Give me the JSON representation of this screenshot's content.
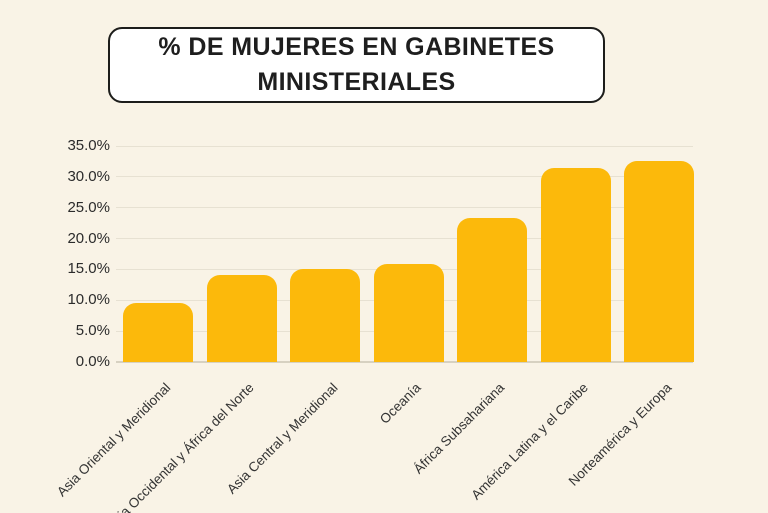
{
  "page": {
    "background_color": "#F9F3E6"
  },
  "title": {
    "text": "% DE MUJERES EN GABINETES MINISTERIALES",
    "box_background": "#FFFFFF",
    "box_border_color": "#1D1D1B",
    "text_color": "#1E1E1E"
  },
  "chart_data": {
    "type": "bar",
    "title": "% DE MUJERES EN GABINETES MINISTERIALES",
    "categories": [
      "Asia Oriental y Meridional",
      "Asia Occidental y África del Norte",
      "Asia Central y Meridional",
      "Oceanía",
      "África Subsahariana",
      "América Latina y el Caribe",
      "Norteamérica y Europa"
    ],
    "values": [
      9.6,
      14.1,
      15.0,
      15.9,
      23.4,
      31.4,
      32.5
    ],
    "xlabel": "",
    "ylabel": "",
    "ylim": [
      0,
      35
    ],
    "ytick_step": 5,
    "ytick_labels": [
      "0.0%",
      "5.0%",
      "10.0%",
      "15.0%",
      "20.0%",
      "25.0%",
      "30.0%",
      "35.0%"
    ],
    "grid": true,
    "legend": false,
    "bar_color": "#FCB90B",
    "gridline_color": "#E7E1D2",
    "axis_line_color": "#D7D1C1",
    "tick_label_color": "#2B2B2B",
    "category_label_color": "#333333"
  }
}
